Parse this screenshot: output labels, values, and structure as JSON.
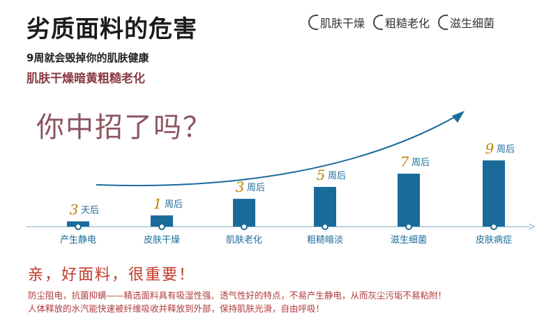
{
  "title": "劣质面料的危害",
  "tags": [
    "肌肤干燥",
    "粗糙老化",
    "滋生细菌"
  ],
  "subtitle1": "9周就会毁掉你的肌肤健康",
  "subtitle2": "肌肤干燥暗黄粗糙老化",
  "question": "你中招了吗？",
  "chart_data": {
    "type": "bar",
    "categories": [
      "产生静电",
      "皮肤干燥",
      "肌肤老化",
      "粗糙暗淡",
      "滋生细菌",
      "皮肤病症"
    ],
    "values": [
      3,
      1,
      3,
      5,
      7,
      9
    ],
    "value_units": [
      "天后",
      "周后",
      "周后",
      "周后",
      "周后",
      "周后"
    ],
    "bar_heights_relative": [
      0.08,
      0.17,
      0.42,
      0.6,
      0.8,
      1.0
    ],
    "colors": {
      "bar": "#1a6b9a",
      "number": "#b8860b",
      "unit": "#1a6b9a",
      "category": "#1a6b9a",
      "arrow": "#1a6b9a"
    }
  },
  "tagline": "亲，好面料，很重要！",
  "body_lines": [
    "防尘阻电，抗菌抑螨——精选面料具有吸湿性强、透气性好的特点，不易产生静电，从而灰尘污垢不易粘附！",
    "人体释放的水汽能快速被纤维吸收并释放到外部，保持肌肤光滑，自由呼吸！"
  ]
}
